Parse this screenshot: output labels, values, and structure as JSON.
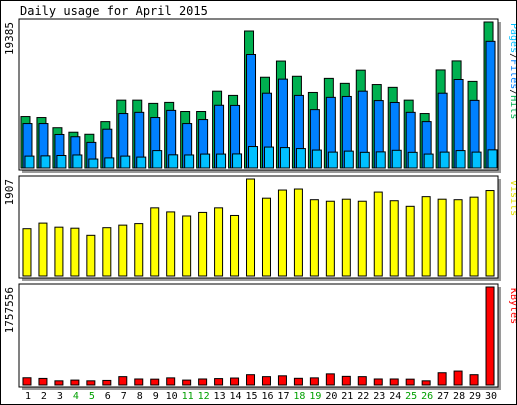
{
  "chart_data": {
    "type": "bar",
    "title": "Daily usage for April 2015",
    "days": [
      "1",
      "2",
      "3",
      "4",
      "5",
      "6",
      "7",
      "8",
      "9",
      "10",
      "11",
      "12",
      "13",
      "14",
      "15",
      "16",
      "17",
      "18",
      "19",
      "20",
      "21",
      "22",
      "23",
      "24",
      "25",
      "26",
      "27",
      "28",
      "29",
      "30"
    ],
    "weekend_days": [
      "4",
      "5",
      "11",
      "12",
      "18",
      "19",
      "25",
      "26"
    ],
    "panels": [
      {
        "id": "hits-panel",
        "max_label": "19385",
        "ymax": 19385,
        "legend": [
          {
            "text": "Pages",
            "color": "#00C0FF"
          },
          {
            "text": "/",
            "color": "#000000"
          },
          {
            "text": "Files",
            "color": "#0080FF"
          },
          {
            "text": "/",
            "color": "#000000"
          },
          {
            "text": "Hits",
            "color": "#00B050"
          }
        ],
        "series": [
          {
            "name": "Hits",
            "color": "#00B050",
            "values": [
              6830,
              6700,
              5350,
              4750,
              4480,
              6160,
              9010,
              9010,
              8580,
              8710,
              7500,
              7500,
              10200,
              9640,
              18190,
              12050,
              14200,
              12180,
              10030,
              11900,
              11240,
              12990,
              11080,
              10710,
              9010,
              7230,
              13020,
              14220,
              11500,
              19385
            ]
          },
          {
            "name": "Files",
            "color": "#0080FF",
            "values": [
              5900,
              5900,
              4450,
              4150,
              3400,
              5150,
              7230,
              7390,
              6700,
              7650,
              5900,
              6430,
              8330,
              8310,
              15070,
              9930,
              11800,
              9640,
              7750,
              9380,
              9500,
              10200,
              8950,
              8700,
              7390,
              6160,
              9930,
              11750,
              8980,
              16820
            ]
          },
          {
            "name": "Pages",
            "color": "#00C0FF",
            "values": [
              1580,
              1610,
              1660,
              1730,
              1190,
              1340,
              1580,
              1450,
              2310,
              1750,
              1730,
              1850,
              1850,
              1870,
              2850,
              2780,
              2710,
              2580,
              2380,
              2110,
              2240,
              2080,
              2140,
              2350,
              2080,
              1850,
              2110,
              2310,
              2110,
              2410
            ]
          }
        ]
      },
      {
        "id": "visits-panel",
        "max_label": "1907",
        "ymax": 1907,
        "legend": [
          {
            "text": "Visits",
            "color": "#E0E000"
          }
        ],
        "series": [
          {
            "name": "Visits",
            "color": "#FFFF00",
            "values": [
              930,
              1040,
              960,
              940,
              800,
              950,
              1000,
              1030,
              1340,
              1260,
              1180,
              1250,
              1340,
              1190,
              1907,
              1530,
              1690,
              1710,
              1500,
              1470,
              1510,
              1470,
              1650,
              1480,
              1370,
              1560,
              1510,
              1500,
              1550,
              1680
            ]
          }
        ]
      },
      {
        "id": "kbytes-panel",
        "max_label": "1757556",
        "ymax": 1757556,
        "legend": [
          {
            "text": "KBytes",
            "color": "#FF0000"
          }
        ],
        "series": [
          {
            "name": "KBytes",
            "color": "#FF0000",
            "values": [
              130000,
              118000,
              75000,
              88000,
              75000,
              82000,
              150000,
              108000,
              105000,
              128000,
              88000,
              108000,
              115000,
              125000,
              185000,
              150000,
              165000,
              120000,
              128000,
              200000,
              155000,
              150000,
              108000,
              108000,
              105000,
              75000,
              220000,
              250000,
              185000,
              1757556
            ]
          }
        ]
      }
    ]
  }
}
